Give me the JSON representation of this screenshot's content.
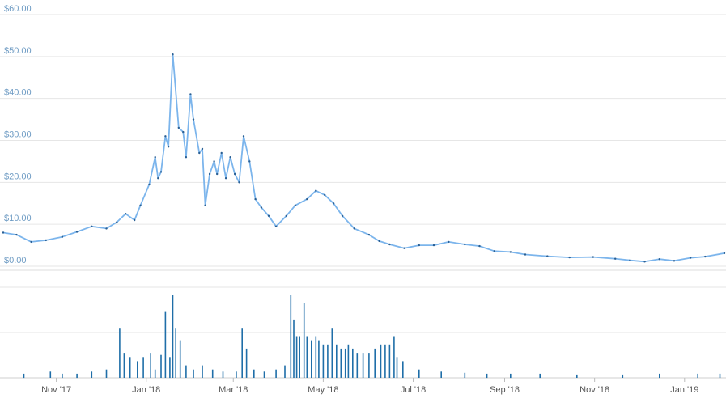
{
  "chart_data": {
    "type": "line",
    "price_axis": {
      "tick_labels": [
        "$60.00",
        "$50.00",
        "$40.00",
        "$30.00",
        "$20.00",
        "$10.00",
        "$0.00"
      ],
      "ylim": [
        0,
        60
      ]
    },
    "x_axis": {
      "tick_labels": [
        "Nov '17",
        "Jan '18",
        "Mar '18",
        "May '18",
        "Jul '18",
        "Sep '18",
        "Nov '18",
        "Jan '19"
      ],
      "tick_dates": [
        "2017-11-01",
        "2018-01-01",
        "2018-03-01",
        "2018-05-01",
        "2018-07-01",
        "2018-09-01",
        "2018-11-01",
        "2019-01-01"
      ],
      "range": [
        "2017-09-26",
        "2019-01-28"
      ]
    },
    "series": [
      {
        "type": "line",
        "x": [
          "2017-09-26",
          "2017-10-05",
          "2017-10-15",
          "2017-10-25",
          "2017-11-05",
          "2017-11-15",
          "2017-11-25",
          "2017-12-05",
          "2017-12-12",
          "2017-12-18",
          "2017-12-24",
          "2017-12-28",
          "2018-01-03",
          "2018-01-07",
          "2018-01-09",
          "2018-01-11",
          "2018-01-14",
          "2018-01-16",
          "2018-01-19",
          "2018-01-23",
          "2018-01-26",
          "2018-01-28",
          "2018-01-31",
          "2018-02-02",
          "2018-02-06",
          "2018-02-08",
          "2018-02-10",
          "2018-02-13",
          "2018-02-16",
          "2018-02-18",
          "2018-02-21",
          "2018-02-24",
          "2018-02-27",
          "2018-03-02",
          "2018-03-05",
          "2018-03-08",
          "2018-03-12",
          "2018-03-16",
          "2018-03-20",
          "2018-03-25",
          "2018-03-30",
          "2018-04-06",
          "2018-04-12",
          "2018-04-20",
          "2018-04-26",
          "2018-05-02",
          "2018-05-08",
          "2018-05-14",
          "2018-05-22",
          "2018-06-01",
          "2018-06-08",
          "2018-06-15",
          "2018-06-25",
          "2018-07-05",
          "2018-07-15",
          "2018-07-25",
          "2018-08-05",
          "2018-08-15",
          "2018-08-25",
          "2018-09-05",
          "2018-09-15",
          "2018-09-30",
          "2018-10-15",
          "2018-10-31",
          "2018-11-15",
          "2018-11-25",
          "2018-12-05",
          "2018-12-15",
          "2018-12-25",
          "2019-01-05",
          "2019-01-15",
          "2019-01-28"
        ],
        "values": [
          8,
          7.5,
          5.8,
          6.2,
          7,
          8.2,
          9.5,
          9,
          10.5,
          12.5,
          11,
          14.5,
          19.5,
          26,
          21,
          22.5,
          31,
          28.5,
          50.5,
          33,
          32,
          26,
          41,
          35,
          27,
          28,
          14.5,
          22,
          25,
          22,
          27,
          21,
          26,
          22,
          20,
          31,
          25,
          16,
          14,
          12,
          9.5,
          12,
          14.5,
          16,
          18,
          17,
          15,
          12,
          9,
          7.5,
          6,
          5.2,
          4.3,
          5,
          5,
          5.8,
          5.2,
          4.8,
          3.6,
          3.4,
          2.8,
          2.4,
          2.1,
          2.2,
          1.8,
          1.4,
          1.1,
          1.7,
          1.3,
          2,
          2.3,
          3.1
        ]
      }
    ],
    "volume": {
      "type": "bar",
      "x": [
        "2017-10-10",
        "2017-10-28",
        "2017-11-05",
        "2017-11-15",
        "2017-11-25",
        "2017-12-05",
        "2017-12-14",
        "2017-12-17",
        "2017-12-21",
        "2017-12-26",
        "2017-12-30",
        "2018-01-04",
        "2018-01-07",
        "2018-01-11",
        "2018-01-14",
        "2018-01-17",
        "2018-01-19",
        "2018-01-21",
        "2018-01-24",
        "2018-01-28",
        "2018-02-02",
        "2018-02-08",
        "2018-02-15",
        "2018-02-22",
        "2018-03-03",
        "2018-03-07",
        "2018-03-10",
        "2018-03-15",
        "2018-03-22",
        "2018-03-30",
        "2018-04-05",
        "2018-04-09",
        "2018-04-11",
        "2018-04-13",
        "2018-04-15",
        "2018-04-18",
        "2018-04-20",
        "2018-04-23",
        "2018-04-26",
        "2018-04-28",
        "2018-05-01",
        "2018-05-04",
        "2018-05-07",
        "2018-05-10",
        "2018-05-13",
        "2018-05-16",
        "2018-05-18",
        "2018-05-21",
        "2018-05-24",
        "2018-05-28",
        "2018-06-01",
        "2018-06-05",
        "2018-06-09",
        "2018-06-12",
        "2018-06-15",
        "2018-06-18",
        "2018-06-20",
        "2018-06-24",
        "2018-07-05",
        "2018-07-20",
        "2018-08-05",
        "2018-08-20",
        "2018-09-05",
        "2018-09-25",
        "2018-10-20",
        "2018-11-20",
        "2018-12-15",
        "2019-01-10",
        "2019-01-25"
      ],
      "values": [
        1,
        1.5,
        1,
        1,
        1.5,
        2,
        12,
        6,
        5,
        4,
        5,
        6,
        2,
        5.5,
        16,
        5,
        20,
        12,
        9,
        3,
        2,
        3,
        2,
        1.5,
        1.5,
        12,
        7,
        2,
        1.5,
        2,
        3,
        20,
        14,
        10,
        10,
        18,
        10,
        9,
        10,
        9,
        8,
        8,
        12,
        8,
        7,
        7,
        8,
        7,
        6,
        6,
        6,
        7,
        8,
        8,
        8,
        10,
        5,
        4,
        2,
        1.5,
        1.2,
        1,
        1,
        1,
        0.8,
        0.8,
        1,
        1,
        1
      ]
    }
  }
}
